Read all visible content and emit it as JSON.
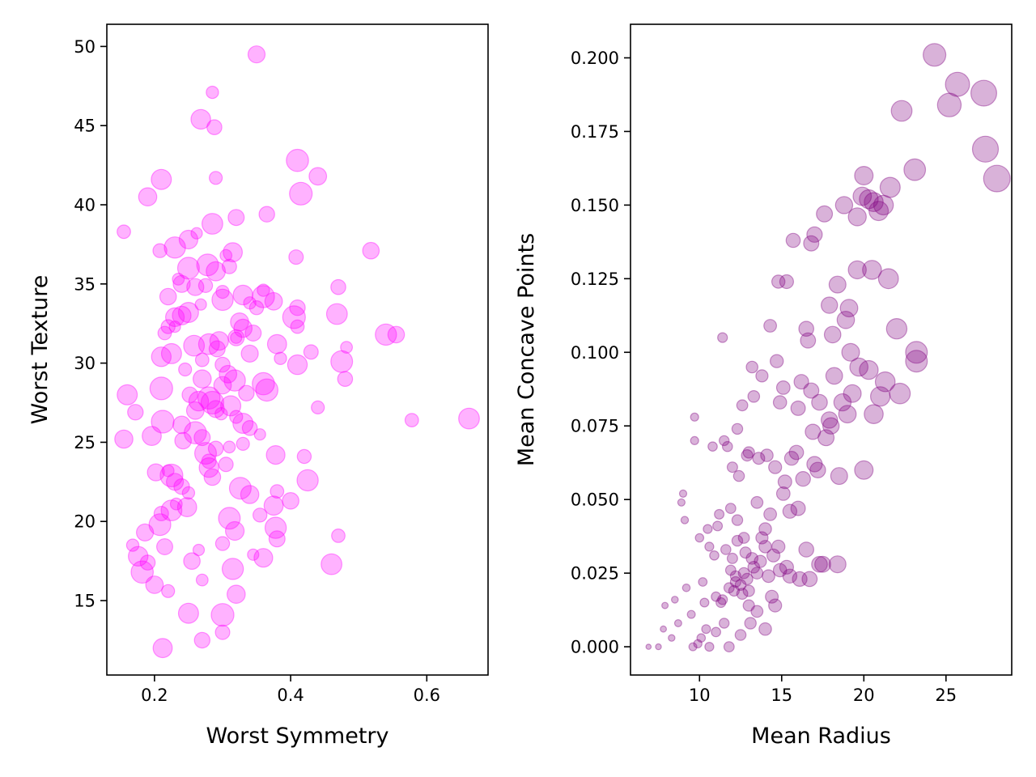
{
  "chart_data": [
    {
      "type": "scatter",
      "title": "",
      "xlabel": "Worst Symmetry",
      "ylabel": "Worst Texture",
      "xlim": [
        0.13,
        0.69
      ],
      "ylim": [
        10.3,
        51.4
      ],
      "xticks": [
        0.2,
        0.4,
        0.6
      ],
      "xtick_labels": [
        "0.2",
        "0.4",
        "0.6"
      ],
      "yticks": [
        15,
        20,
        25,
        30,
        35,
        40,
        45,
        50
      ],
      "ytick_labels": [
        "15",
        "20",
        "25",
        "30",
        "35",
        "40",
        "45",
        "50"
      ],
      "grid": false,
      "legend": "none",
      "color": "#ff00ff",
      "alpha": 0.3,
      "marker_size_note": "marker area varies per point",
      "series": [
        {
          "x": [
            0.35,
            0.285,
            0.268,
            0.288,
            0.41,
            0.44,
            0.29,
            0.21,
            0.365,
            0.415,
            0.19,
            0.155,
            0.285,
            0.32,
            0.262,
            0.25,
            0.208,
            0.23,
            0.518,
            0.305,
            0.315,
            0.408,
            0.278,
            0.24,
            0.36,
            0.33,
            0.47,
            0.36,
            0.375,
            0.3,
            0.25,
            0.41,
            0.405,
            0.33,
            0.41,
            0.468,
            0.345,
            0.32,
            0.295,
            0.22,
            0.54,
            0.555,
            0.482,
            0.38,
            0.43,
            0.475,
            0.34,
            0.385,
            0.41,
            0.48,
            0.365,
            0.3,
            0.44,
            0.16,
            0.172,
            0.212,
            0.155,
            0.578,
            0.662,
            0.27,
            0.355,
            0.378,
            0.42,
            0.425,
            0.4,
            0.22,
            0.375,
            0.21,
            0.208,
            0.186,
            0.168,
            0.176,
            0.19,
            0.182,
            0.2,
            0.22,
            0.25,
            0.27,
            0.3,
            0.32,
            0.47,
            0.46,
            0.38,
            0.345,
            0.36,
            0.3,
            0.315,
            0.255,
            0.27,
            0.212,
            0.3,
            0.31,
            0.23,
            0.25,
            0.28,
            0.29,
            0.26,
            0.24,
            0.33,
            0.312,
            0.335,
            0.21,
            0.27,
            0.27,
            0.28,
            0.32,
            0.23,
            0.24,
            0.35,
            0.3,
            0.22,
            0.235,
            0.29,
            0.31,
            0.25,
            0.26,
            0.34,
            0.21,
            0.3,
            0.28,
            0.26,
            0.32,
            0.33,
            0.24,
            0.225,
            0.34,
            0.38,
            0.225,
            0.215,
            0.265,
            0.318,
            0.355,
            0.378,
            0.285,
            0.232,
            0.248,
            0.305,
            0.275,
            0.202,
            0.298,
            0.265,
            0.34,
            0.36,
            0.308,
            0.245,
            0.225,
            0.252,
            0.285,
            0.325,
            0.215,
            0.258,
            0.292,
            0.268,
            0.23,
            0.275,
            0.318,
            0.242,
            0.31,
            0.196,
            0.28,
            0.326,
            0.29
          ],
          "y": [
            49.5,
            47.1,
            45.4,
            44.9,
            42.8,
            41.8,
            41.7,
            41.6,
            39.4,
            40.7,
            40.5,
            38.3,
            38.8,
            39.2,
            38.2,
            37.8,
            37.1,
            37.3,
            37.1,
            36.8,
            37.0,
            36.7,
            36.2,
            35.0,
            34.6,
            34.3,
            34.8,
            34.2,
            33.9,
            34.5,
            33.2,
            33.5,
            32.9,
            32.2,
            32.3,
            33.1,
            31.9,
            31.6,
            31.4,
            32.3,
            31.8,
            31.8,
            31.0,
            31.2,
            30.7,
            30.1,
            30.6,
            30.3,
            29.9,
            29.0,
            28.3,
            28.6,
            27.2,
            28.0,
            26.9,
            26.3,
            25.2,
            26.4,
            26.5,
            25.3,
            25.5,
            24.2,
            24.1,
            22.6,
            21.3,
            23.2,
            21.0,
            20.5,
            19.8,
            19.3,
            18.5,
            17.8,
            17.4,
            16.8,
            16.0,
            15.6,
            14.2,
            12.5,
            14.1,
            15.4,
            19.1,
            17.3,
            18.9,
            17.9,
            17.7,
            18.6,
            17.0,
            17.5,
            16.3,
            12.0,
            13.0,
            20.2,
            22.5,
            21.8,
            23.4,
            24.6,
            25.6,
            26.1,
            24.9,
            27.3,
            28.1,
            28.4,
            29.0,
            30.2,
            31.2,
            31.6,
            32.3,
            33.0,
            33.5,
            34.0,
            34.2,
            35.3,
            35.8,
            36.1,
            36.0,
            34.8,
            33.8,
            30.4,
            29.9,
            27.8,
            27.0,
            26.6,
            26.2,
            22.2,
            22.9,
            21.7,
            21.9,
            20.7,
            18.4,
            18.2,
            19.4,
            20.4,
            19.6,
            22.8,
            21.1,
            20.9,
            23.6,
            24.3,
            23.1,
            26.8,
            27.6,
            25.9,
            28.7,
            29.3,
            29.6,
            30.6,
            28.0,
            27.5,
            32.6,
            31.9,
            31.1,
            30.9,
            33.7,
            32.9,
            34.9,
            28.9,
            25.1,
            24.7,
            25.4,
            23.8,
            22.1,
            27.1
          ]
        }
      ]
    },
    {
      "type": "scatter",
      "title": "",
      "xlabel": "Mean Radius",
      "ylabel": "Mean Concave Points",
      "xlim": [
        5.8,
        29.0
      ],
      "ylim": [
        -0.0096,
        0.2114
      ],
      "xticks": [
        10,
        15,
        20,
        25
      ],
      "xtick_labels": [
        "10",
        "15",
        "20",
        "25"
      ],
      "yticks": [
        0.0,
        0.025,
        0.05,
        0.075,
        0.1,
        0.125,
        0.15,
        0.175,
        0.2
      ],
      "ytick_labels": [
        "0.000",
        "0.025",
        "0.050",
        "0.075",
        "0.100",
        "0.125",
        "0.150",
        "0.175",
        "0.200"
      ],
      "grid": false,
      "legend": "none",
      "color": "#800080",
      "alpha": 0.3,
      "marker_size_note": "marker area grows with Mean Radius",
      "series": [
        {
          "x": [
            24.3,
            25.7,
            27.3,
            25.2,
            22.3,
            27.4,
            28.1,
            23.1,
            20.0,
            21.6,
            20.6,
            20.3,
            20.9,
            17.6,
            18.8,
            19.6,
            21.2,
            19.9,
            17.0,
            16.8,
            15.7,
            14.8,
            15.3,
            19.6,
            20.5,
            21.5,
            18.4,
            22.0,
            23.2,
            23.2,
            17.9,
            19.1,
            18.9,
            16.5,
            16.6,
            18.1,
            14.3,
            19.2,
            11.4,
            13.2,
            13.8,
            14.7,
            15.1,
            16.2,
            16.8,
            18.2,
            19.7,
            20.3,
            21.3,
            16.0,
            17.3,
            14.9,
            13.3,
            12.6,
            12.3,
            11.5,
            9.7,
            9.7,
            10.8,
            11.7,
            12.9,
            14.1,
            14.6,
            15.6,
            17.0,
            18.5,
            20.0,
            13.0,
            13.6,
            12.0,
            12.4,
            15.2,
            16.0,
            9.0,
            8.9,
            9.1,
            10.0,
            10.5,
            11.2,
            11.9,
            11.1,
            12.3,
            13.5,
            13.8,
            12.7,
            11.6,
            10.6,
            10.9,
            12.0,
            12.8,
            13.2,
            14.0,
            14.5,
            14.8,
            16.5,
            17.5,
            18.4,
            13.5,
            14.2,
            14.9,
            15.5,
            16.1,
            12.2,
            12.7,
            10.2,
            9.2,
            8.5,
            7.9,
            7.5,
            6.9,
            7.8,
            8.7,
            9.5,
            10.3,
            11.0,
            11.3,
            12.1,
            13.0,
            13.5,
            14.4,
            14.0,
            10.1,
            10.6,
            11.8,
            12.5,
            13.1,
            11.4,
            11.8,
            12.2,
            12.6,
            13.0,
            13.3,
            12.5,
            12.9,
            11.9,
            14.3,
            15.1,
            16.3,
            17.2,
            18.0,
            19.0,
            17.7,
            19.3,
            20.6,
            15.9,
            16.9,
            17.9,
            18.7,
            21.0,
            22.2,
            14.0,
            15.5,
            11.5,
            11.0,
            10.4,
            9.6,
            9.9,
            8.3,
            13.7,
            15.3,
            16.7,
            17.3,
            12.3,
            14.6
          ],
          "y": [
            0.201,
            0.191,
            0.188,
            0.184,
            0.182,
            0.169,
            0.159,
            0.162,
            0.16,
            0.156,
            0.151,
            0.152,
            0.148,
            0.147,
            0.15,
            0.146,
            0.15,
            0.153,
            0.14,
            0.137,
            0.138,
            0.124,
            0.124,
            0.128,
            0.128,
            0.125,
            0.123,
            0.108,
            0.1,
            0.097,
            0.116,
            0.115,
            0.111,
            0.108,
            0.104,
            0.106,
            0.109,
            0.1,
            0.105,
            0.095,
            0.092,
            0.097,
            0.088,
            0.09,
            0.087,
            0.092,
            0.095,
            0.094,
            0.09,
            0.081,
            0.083,
            0.083,
            0.085,
            0.082,
            0.074,
            0.07,
            0.078,
            0.07,
            0.068,
            0.068,
            0.065,
            0.065,
            0.061,
            0.064,
            0.062,
            0.058,
            0.06,
            0.066,
            0.064,
            0.061,
            0.058,
            0.056,
            0.047,
            0.052,
            0.049,
            0.043,
            0.037,
            0.04,
            0.045,
            0.047,
            0.041,
            0.043,
            0.049,
            0.037,
            0.037,
            0.033,
            0.034,
            0.031,
            0.03,
            0.032,
            0.03,
            0.034,
            0.031,
            0.034,
            0.033,
            0.028,
            0.028,
            0.025,
            0.024,
            0.026,
            0.024,
            0.023,
            0.024,
            0.025,
            0.022,
            0.02,
            0.016,
            0.014,
            0.0,
            0.0,
            0.006,
            0.008,
            0.011,
            0.015,
            0.017,
            0.015,
            0.019,
            0.014,
            0.012,
            0.017,
            0.006,
            0.003,
            0.0,
            0.0,
            0.004,
            0.008,
            0.016,
            0.02,
            0.022,
            0.018,
            0.019,
            0.027,
            0.021,
            0.023,
            0.026,
            0.045,
            0.052,
            0.057,
            0.06,
            0.075,
            0.079,
            0.071,
            0.086,
            0.079,
            0.066,
            0.073,
            0.077,
            0.083,
            0.085,
            0.086,
            0.04,
            0.046,
            0.008,
            0.005,
            0.006,
            0.0,
            0.001,
            0.003,
            0.029,
            0.027,
            0.023,
            0.028,
            0.036,
            0.014
          ]
        }
      ]
    }
  ]
}
